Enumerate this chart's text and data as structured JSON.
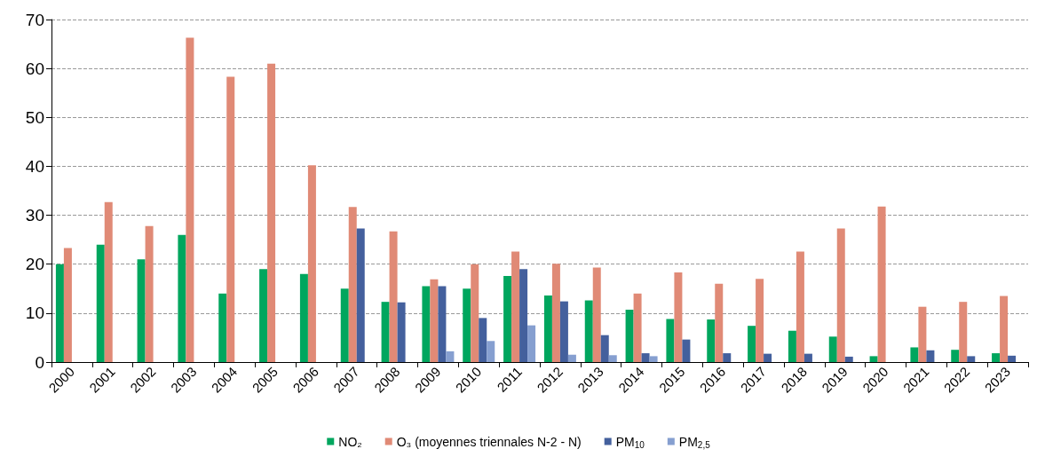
{
  "chart_data": {
    "type": "bar",
    "categories": [
      "2000",
      "2001",
      "2002",
      "2003",
      "2004",
      "2005",
      "2006",
      "2007",
      "2008",
      "2009",
      "2010",
      "2011",
      "2012",
      "2013",
      "2014",
      "2015",
      "2016",
      "2017",
      "2018",
      "2019",
      "2020",
      "2021",
      "2022",
      "2023"
    ],
    "series": [
      {
        "name": "NO₂",
        "color": "#00a65e",
        "values": [
          20,
          24,
          21,
          26,
          14,
          19,
          18,
          15,
          12.3,
          15.5,
          15,
          17.6,
          13.6,
          12.6,
          10.7,
          8.8,
          8.7,
          7.4,
          6.4,
          5.2,
          1.2,
          3,
          2.5,
          1.8
        ]
      },
      {
        "name": "O₃ (moyennes triennales N-2 - N)",
        "color": "#e08a76",
        "values": [
          23.3,
          32.7,
          27.8,
          66.3,
          58.3,
          61,
          40.2,
          31.7,
          26.7,
          16.9,
          20,
          22.6,
          20.1,
          19.3,
          14,
          18.3,
          16,
          17,
          22.6,
          27.3,
          31.8,
          11.3,
          12.3,
          13.5
        ]
      },
      {
        "name": "PM$_{10}$",
        "color": "#44609d",
        "values": [
          null,
          null,
          null,
          null,
          null,
          null,
          null,
          27.3,
          12.2,
          15.5,
          9,
          19,
          12.4,
          5.5,
          1.8,
          4.6,
          1.8,
          1.7,
          1.7,
          1.1,
          null,
          2.4,
          1.2,
          1.3
        ]
      },
      {
        "name": "PM$_{2,5}$",
        "color": "#869fd0",
        "values": [
          null,
          null,
          null,
          null,
          null,
          null,
          null,
          null,
          null,
          2.2,
          4.3,
          7.5,
          1.5,
          1.4,
          1.2,
          null,
          null,
          null,
          null,
          null,
          null,
          null,
          null,
          null
        ]
      }
    ],
    "ylim": [
      0,
      70
    ],
    "yticks": [
      0,
      10,
      20,
      30,
      40,
      50,
      60,
      70
    ],
    "grid": "y",
    "legend": "bottom"
  }
}
